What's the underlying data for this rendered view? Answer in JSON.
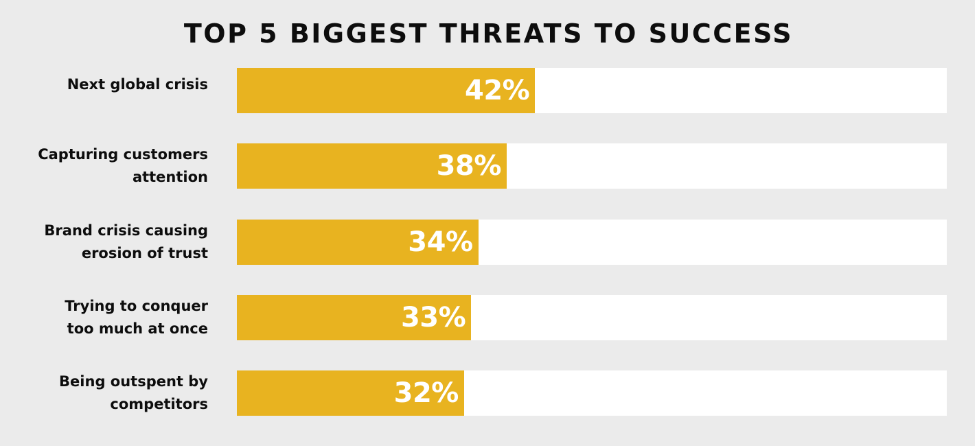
{
  "chart_data": {
    "type": "bar",
    "orientation": "horizontal",
    "title": "TOP 5 BIGGEST THREATS TO SUCCESS",
    "categories": [
      "Next global crisis",
      "Capturing customers\nattention",
      "Brand crisis causing\nerosion of trust",
      "Trying to conquer\ntoo much at once",
      "Being outspent by\ncompetitors"
    ],
    "values": [
      42,
      38,
      34,
      33,
      32
    ],
    "value_labels": [
      "42%",
      "38%",
      "34%",
      "33%",
      "32%"
    ],
    "xlim": [
      0,
      100
    ],
    "unit": "%",
    "grid": false,
    "legend": "none",
    "colors": {
      "bar": "#e8b320",
      "track": "#ffffff",
      "background": "#ebebeb",
      "value_text": "#ffffff",
      "label_text": "#0d0d0d"
    }
  }
}
